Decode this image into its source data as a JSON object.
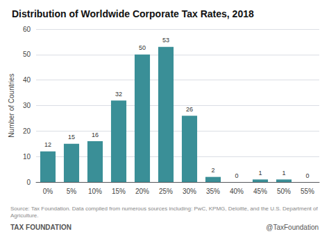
{
  "chart_data": {
    "type": "bar",
    "title": "Distribution of Worldwide Corporate Tax Rates, 2018",
    "categories": [
      "0%",
      "5%",
      "10%",
      "15%",
      "20%",
      "25%",
      "30%",
      "35%",
      "40%",
      "45%",
      "50%",
      "55%"
    ],
    "values": [
      12,
      15,
      16,
      32,
      50,
      53,
      26,
      2,
      0,
      1,
      1,
      0
    ],
    "color": "#3a8f97",
    "ylabel": "Number of Countries",
    "ylim": [
      0,
      60
    ],
    "yticks": [
      0,
      10,
      20,
      30,
      40,
      50,
      60
    ],
    "grid": true,
    "data_labels": true,
    "annotations": [
      "Source: Tax Foundation. Data compiled from numerous sources including: PwC, KPMG, Deloitte, and the U.S. Department of Agriculture.",
      "TAX FOUNDATION",
      "@TaxFoundation"
    ]
  }
}
